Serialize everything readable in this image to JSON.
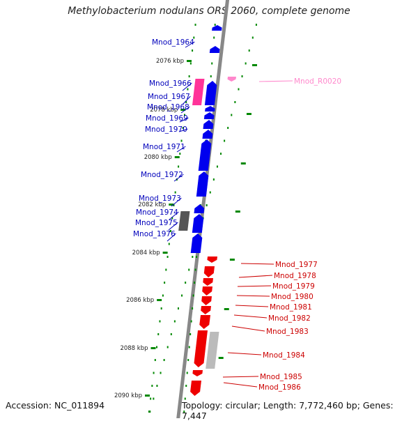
{
  "title": "Methylobacterium nodulans ORS 2060, complete genome",
  "footer": {
    "accession": "Accession: NC_011894",
    "topology": "Topology: circular; Length: 7,772,460 bp; Genes: 7,447"
  },
  "colors": {
    "forward_gene": "#0000ee",
    "reverse_gene": "#ee0000",
    "rna_gene": "#ff3399",
    "pseudo_forward": "#555555",
    "pseudo_reverse": "#bbbbbb",
    "scale_mark": "#008800",
    "backbone": "#888888"
  },
  "scale_labels": [
    "2076 kbp",
    "2078 kbp",
    "2080 kbp",
    "2082 kbp",
    "2084 kbp",
    "2086 kbp",
    "2088 kbp",
    "2090 kbp"
  ],
  "genes": [
    {
      "name": "Mnod_1964",
      "strand": "forward"
    },
    {
      "name": "Mnod_R0020",
      "strand": "rna"
    },
    {
      "name": "Mnod_1966",
      "strand": "forward"
    },
    {
      "name": "Mnod_1967",
      "strand": "forward"
    },
    {
      "name": "Mnod_1968",
      "strand": "forward"
    },
    {
      "name": "Mnod_1969",
      "strand": "forward"
    },
    {
      "name": "Mnod_1970",
      "strand": "forward"
    },
    {
      "name": "Mnod_1971",
      "strand": "forward"
    },
    {
      "name": "Mnod_1972",
      "strand": "forward"
    },
    {
      "name": "Mnod_1973",
      "strand": "forward"
    },
    {
      "name": "Mnod_1974",
      "strand": "forward"
    },
    {
      "name": "Mnod_1975",
      "strand": "forward"
    },
    {
      "name": "Mnod_1976",
      "strand": "forward"
    },
    {
      "name": "Mnod_1977",
      "strand": "reverse"
    },
    {
      "name": "Mnod_1978",
      "strand": "reverse"
    },
    {
      "name": "Mnod_1979",
      "strand": "reverse"
    },
    {
      "name": "Mnod_1980",
      "strand": "reverse"
    },
    {
      "name": "Mnod_1981",
      "strand": "reverse"
    },
    {
      "name": "Mnod_1982",
      "strand": "reverse"
    },
    {
      "name": "Mnod_1983",
      "strand": "reverse"
    },
    {
      "name": "Mnod_1984",
      "strand": "reverse"
    },
    {
      "name": "Mnod_1985",
      "strand": "reverse"
    },
    {
      "name": "Mnod_1986",
      "strand": "reverse"
    }
  ]
}
